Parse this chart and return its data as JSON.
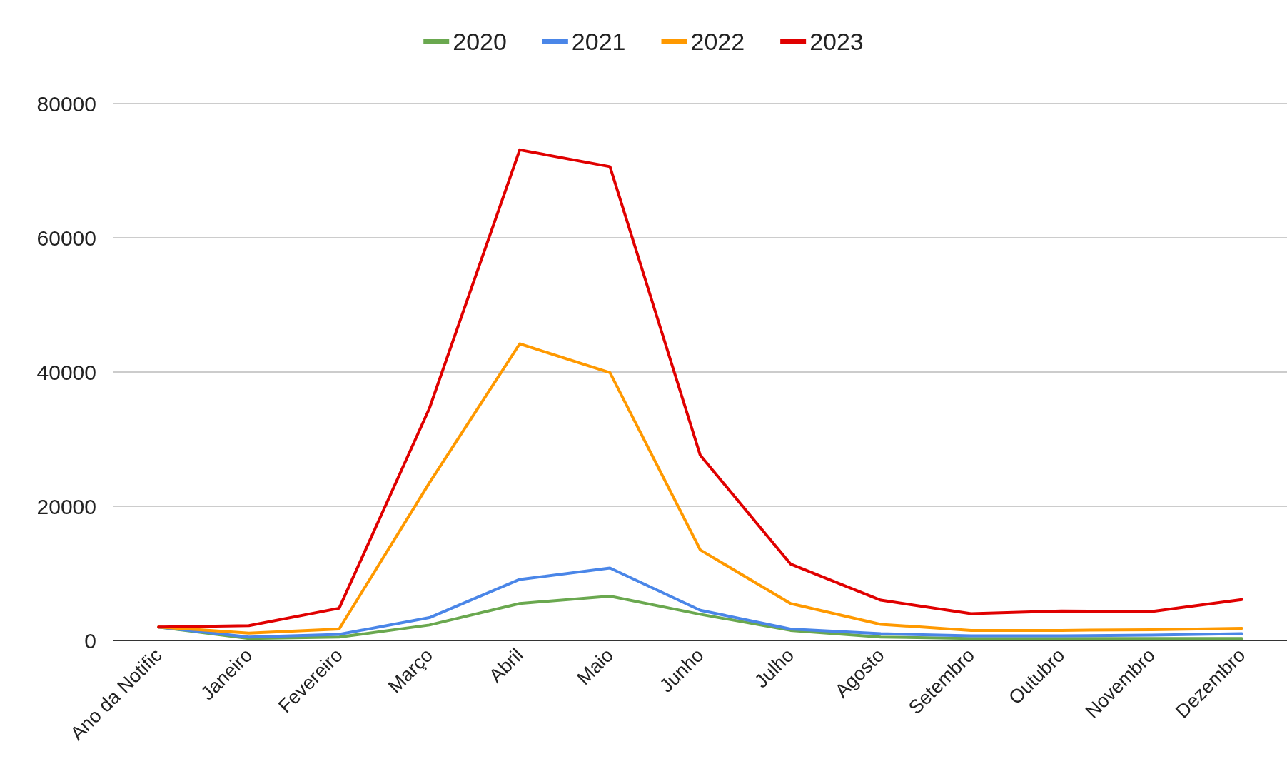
{
  "chart_data": {
    "type": "line",
    "categories": [
      "Ano da Notific",
      "Janeiro",
      "Fevereiro",
      "Março",
      "Abril",
      "Maio",
      "Junho",
      "Julho",
      "Agosto",
      "Setembro",
      "Outubro",
      "Novembro",
      "Dezembro"
    ],
    "series": [
      {
        "name": "2020",
        "color": "#6aa84f",
        "values": [
          2000,
          300,
          500,
          2300,
          5500,
          6600,
          3900,
          1500,
          500,
          300,
          300,
          300,
          300
        ]
      },
      {
        "name": "2021",
        "color": "#4a86e8",
        "values": [
          2000,
          500,
          900,
          3400,
          9100,
          10800,
          4500,
          1700,
          1000,
          700,
          700,
          800,
          1000
        ]
      },
      {
        "name": "2022",
        "color": "#ff9900",
        "values": [
          2000,
          1100,
          1700,
          23500,
          44200,
          39900,
          13500,
          5500,
          2400,
          1500,
          1500,
          1600,
          1800
        ]
      },
      {
        "name": "2023",
        "color": "#e00000",
        "values": [
          2000,
          2200,
          4800,
          34600,
          73100,
          70600,
          27600,
          11400,
          6000,
          4000,
          4400,
          4300,
          6100
        ]
      }
    ],
    "ylim": [
      0,
      80000
    ],
    "yticks": [
      0,
      20000,
      40000,
      60000,
      80000
    ],
    "grid": "y",
    "legend": "top",
    "marker": "none",
    "line_style": "solid"
  }
}
